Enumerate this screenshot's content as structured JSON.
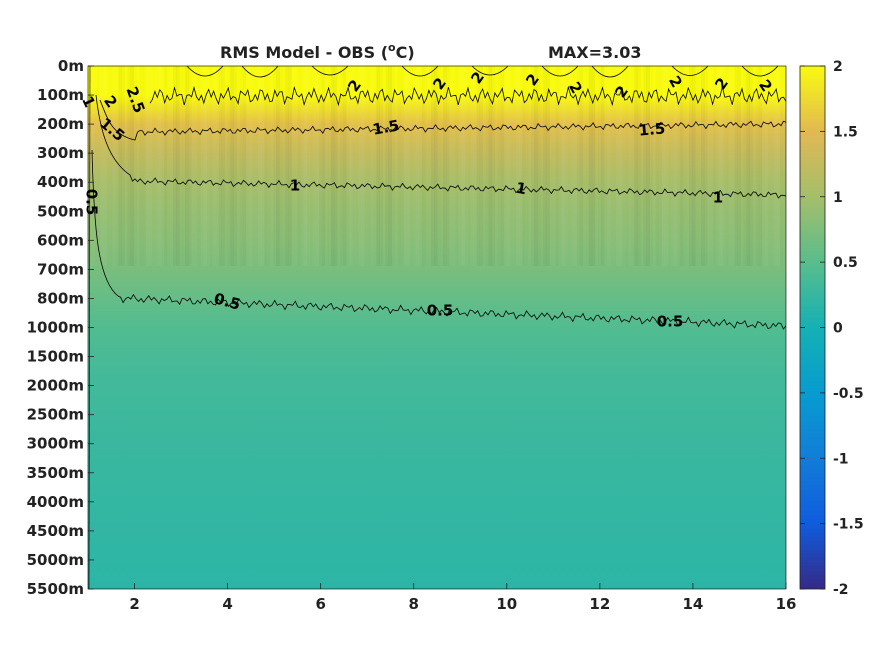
{
  "chart_data": {
    "type": "heatmap",
    "title": "RMS Model - OBS (",
    "title_unit_sup": "o",
    "title_unit_end": "C)",
    "max_label": "MAX=3.03",
    "xlim": [
      1,
      16
    ],
    "x_ticks": [
      "2",
      "4",
      "6",
      "8",
      "10",
      "12",
      "14",
      "16"
    ],
    "x_tick_values": [
      2,
      4,
      6,
      8,
      10,
      12,
      14,
      16
    ],
    "y_ticks": [
      "0m",
      "100m",
      "200m",
      "300m",
      "400m",
      "500m",
      "600m",
      "700m",
      "800m",
      "1000m",
      "1500m",
      "2000m",
      "2500m",
      "3000m",
      "3500m",
      "4000m",
      "4500m",
      "5000m",
      "5500m"
    ],
    "y_tick_depths": [
      0,
      100,
      200,
      300,
      400,
      500,
      600,
      700,
      800,
      1000,
      1500,
      2000,
      2500,
      3000,
      3500,
      4000,
      4500,
      5000,
      5500
    ],
    "y_reversed": true,
    "y_note": "depth levels equally spaced",
    "colorbar": {
      "colormap": "parula",
      "clim": [
        -2,
        2
      ],
      "ticks": [
        "2",
        "1.5",
        "1",
        "0.5",
        "0",
        "-0.5",
        "-1",
        "-1.5",
        "-2"
      ],
      "tick_values": [
        2,
        1.5,
        1,
        0.5,
        0,
        -0.5,
        -1,
        -1.5,
        -2
      ]
    },
    "rms_profile_by_level": [
      2.4,
      2.05,
      1.55,
      1.25,
      1.02,
      0.9,
      0.82,
      0.72,
      0.58,
      0.45,
      0.38,
      0.33,
      0.3,
      0.27,
      0.25,
      0.23,
      0.21,
      0.19,
      0.17
    ],
    "contours": [
      {
        "level": 2.5,
        "labels": [
          "2.5"
        ]
      },
      {
        "level": 2,
        "labels": [
          "2",
          "2",
          "2",
          "2",
          "2",
          "2",
          "2",
          "2",
          "2",
          "2"
        ]
      },
      {
        "level": 1.5,
        "labels": [
          "1.5",
          "1.5",
          "1.5"
        ]
      },
      {
        "level": 1,
        "labels": [
          "1",
          "1",
          "1",
          "1"
        ]
      },
      {
        "level": 0.5,
        "labels": [
          "0.5",
          "0.5",
          "0.5",
          "0.5"
        ]
      }
    ]
  }
}
